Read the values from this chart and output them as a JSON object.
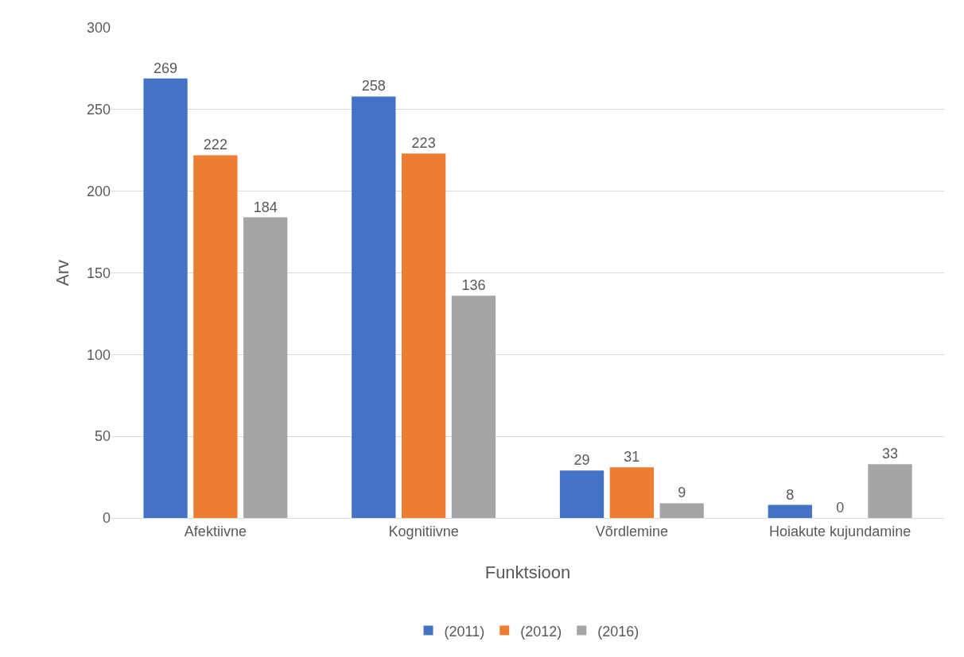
{
  "chart_data": {
    "type": "bar",
    "xlabel": "Funktsioon",
    "ylabel": "Arv",
    "categories": [
      "Afektiivne",
      "Kognitiivne",
      "Võrdlemine",
      "Hoiakute kujundamine"
    ],
    "series": [
      {
        "name": "(2011)",
        "color": "#4472c4",
        "values": [
          269,
          258,
          29,
          8
        ]
      },
      {
        "name": "(2012)",
        "color": "#ed7d31",
        "values": [
          222,
          223,
          31,
          0
        ]
      },
      {
        "name": "(2016)",
        "color": "#a5a5a5",
        "values": [
          184,
          136,
          9,
          33
        ]
      }
    ],
    "ylim": [
      0,
      300
    ],
    "yticks": [
      0,
      50,
      100,
      150,
      200,
      250,
      300
    ],
    "grid": "y",
    "legend": "bottom",
    "data_labels": true
  }
}
